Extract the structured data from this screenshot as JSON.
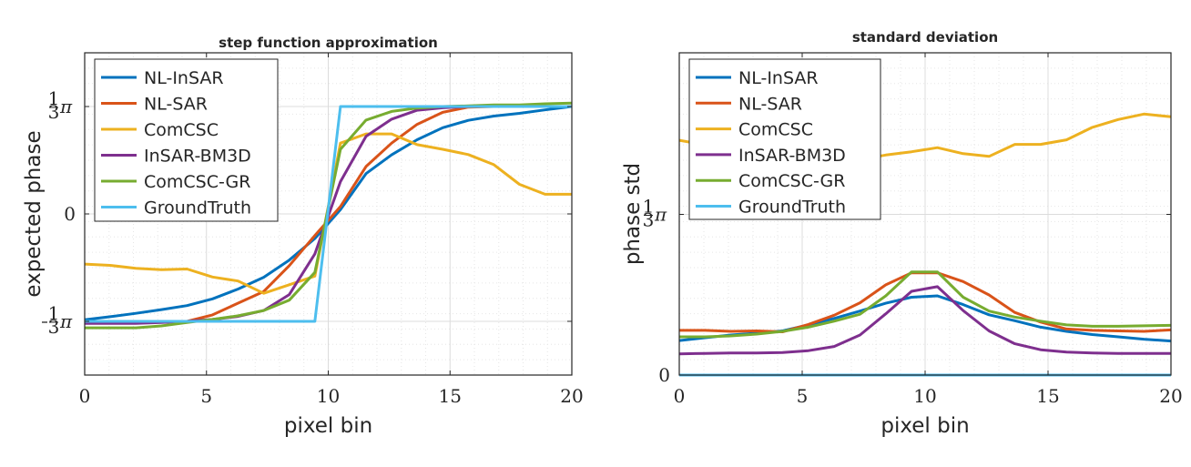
{
  "chart_data": [
    {
      "type": "line",
      "title": "step function approximation",
      "xlabel": "pixel bin",
      "ylabel": "expected phase",
      "xlim": [
        0,
        20
      ],
      "ylim": [
        -0.5236,
        0.5236
      ],
      "xticks": [
        0,
        5,
        10,
        15,
        20
      ],
      "yticks": [
        {
          "value": -0.349,
          "label": "-1/3π",
          "num": "1",
          "den": "3",
          "neg": true
        },
        {
          "value": 0,
          "label": "0"
        },
        {
          "value": 0.349,
          "label": "1/3π",
          "num": "1",
          "den": "3",
          "neg": false
        }
      ],
      "grid": "major and minor",
      "legend_location": "top-left",
      "x": [
        0,
        1.05,
        2.1,
        3.15,
        4.2,
        5.25,
        6.3,
        7.35,
        8.4,
        9.45,
        10.5,
        11.55,
        12.6,
        13.65,
        14.7,
        15.75,
        16.8,
        17.85,
        18.9,
        20
      ],
      "series": [
        {
          "name": "NL-InSAR",
          "color": "#0072BD",
          "values": [
            -0.344,
            -0.334,
            -0.323,
            -0.311,
            -0.298,
            -0.276,
            -0.244,
            -0.206,
            -0.15,
            -0.08,
            0.014,
            0.131,
            0.192,
            0.241,
            0.28,
            0.304,
            0.318,
            0.327,
            0.338,
            0.349
          ]
        },
        {
          "name": "NL-SAR",
          "color": "#D95319",
          "values": [
            -0.349,
            -0.349,
            -0.349,
            -0.349,
            -0.349,
            -0.328,
            -0.29,
            -0.252,
            -0.168,
            -0.07,
            0.024,
            0.154,
            0.23,
            0.291,
            0.33,
            0.347,
            0.349,
            0.349,
            0.349,
            0.349
          ]
        },
        {
          "name": "ComCSC",
          "color": "#EDB120",
          "values": [
            -0.163,
            -0.167,
            -0.177,
            -0.181,
            -0.179,
            -0.205,
            -0.218,
            -0.258,
            -0.23,
            -0.202,
            0.23,
            0.26,
            0.26,
            0.225,
            0.21,
            0.193,
            0.16,
            0.096,
            0.064,
            0.064
          ]
        },
        {
          "name": "InSAR-BM3D",
          "color": "#7E2F8E",
          "values": [
            -0.356,
            -0.356,
            -0.356,
            -0.353,
            -0.349,
            -0.343,
            -0.333,
            -0.314,
            -0.262,
            -0.13,
            0.105,
            0.252,
            0.308,
            0.337,
            0.345,
            0.349,
            0.349,
            0.349,
            0.349,
            0.349
          ]
        },
        {
          "name": "ComCSC-GR",
          "color": "#77AC30",
          "values": [
            -0.37,
            -0.37,
            -0.37,
            -0.364,
            -0.353,
            -0.343,
            -0.331,
            -0.314,
            -0.28,
            -0.19,
            0.21,
            0.305,
            0.333,
            0.344,
            0.349,
            0.351,
            0.354,
            0.354,
            0.358,
            0.36
          ]
        },
        {
          "name": "GroundTruth",
          "color": "#4DBEEE",
          "steps": [
            [
              0,
              -0.349
            ],
            [
              9.45,
              -0.349
            ],
            [
              10.5,
              0.349
            ],
            [
              20,
              0.349
            ]
          ]
        }
      ]
    },
    {
      "type": "line",
      "title": "standard deviation",
      "xlabel": "pixel bin",
      "ylabel": "phase std",
      "xlim": [
        0,
        20
      ],
      "ylim": [
        0,
        0.7
      ],
      "xticks": [
        0,
        5,
        10,
        15,
        20
      ],
      "yticks": [
        {
          "value": 0,
          "label": "0"
        },
        {
          "value": 0.349,
          "label": "1/3π",
          "num": "1",
          "den": "3",
          "neg": false
        }
      ],
      "grid": "major and minor",
      "legend_location": "top-left",
      "x": [
        0,
        1.05,
        2.1,
        3.15,
        4.2,
        5.25,
        6.3,
        7.35,
        8.4,
        9.45,
        10.5,
        11.55,
        12.6,
        13.65,
        14.7,
        15.75,
        16.8,
        17.85,
        18.9,
        20
      ],
      "series": [
        {
          "name": "NL-InSAR",
          "color": "#0072BD",
          "values": [
            0.075,
            0.081,
            0.087,
            0.091,
            0.096,
            0.109,
            0.123,
            0.139,
            0.156,
            0.169,
            0.172,
            0.153,
            0.131,
            0.118,
            0.104,
            0.095,
            0.088,
            0.083,
            0.078,
            0.074
          ]
        },
        {
          "name": "NL-SAR",
          "color": "#D95319",
          "values": [
            0.097,
            0.097,
            0.095,
            0.096,
            0.094,
            0.11,
            0.13,
            0.157,
            0.196,
            0.222,
            0.222,
            0.203,
            0.174,
            0.136,
            0.115,
            0.1,
            0.097,
            0.096,
            0.095,
            0.098
          ]
        },
        {
          "name": "ComCSC",
          "color": "#EDB120",
          "values": [
            0.51,
            0.5,
            0.5,
            0.494,
            0.483,
            0.47,
            0.465,
            0.468,
            0.478,
            0.485,
            0.494,
            0.481,
            0.475,
            0.501,
            0.501,
            0.511,
            0.538,
            0.555,
            0.567,
            0.561
          ]
        },
        {
          "name": "InSAR-BM3D",
          "color": "#7E2F8E",
          "values": [
            0.046,
            0.047,
            0.048,
            0.048,
            0.049,
            0.053,
            0.062,
            0.087,
            0.133,
            0.182,
            0.192,
            0.14,
            0.096,
            0.068,
            0.055,
            0.05,
            0.048,
            0.047,
            0.047,
            0.047
          ]
        },
        {
          "name": "ComCSC-GR",
          "color": "#77AC30",
          "values": [
            0.083,
            0.083,
            0.085,
            0.089,
            0.095,
            0.104,
            0.117,
            0.132,
            0.172,
            0.224,
            0.224,
            0.169,
            0.139,
            0.126,
            0.117,
            0.109,
            0.106,
            0.106,
            0.107,
            0.108
          ]
        },
        {
          "name": "GroundTruth",
          "color": "#4DBEEE",
          "values": [
            0,
            0,
            0,
            0,
            0,
            0,
            0,
            0,
            0,
            0,
            0,
            0,
            0,
            0,
            0,
            0,
            0,
            0,
            0,
            0
          ]
        }
      ]
    }
  ]
}
